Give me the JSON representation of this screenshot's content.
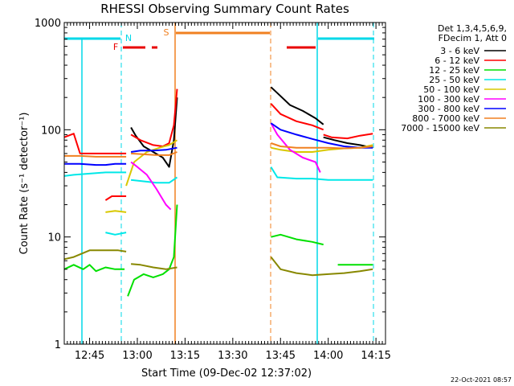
{
  "chart_data": {
    "type": "line",
    "title": "RHESSI Observing Summary Count Rates",
    "xlabel": "Start Time (09-Dec-02 12:37:02)",
    "ylabel": "Count Rate (s⁻¹ detector⁻¹)",
    "y_scale": "log",
    "ylim": [
      1,
      1000
    ],
    "xlim": [
      "12:37:02",
      "14:18:00"
    ],
    "y_ticks": [
      "1",
      "10",
      "100",
      "1000"
    ],
    "x_ticks": [
      "12:45",
      "13:00",
      "13:15",
      "13:30",
      "13:45",
      "14:00",
      "14:15"
    ],
    "legend_header": [
      "Det 1,3,4,5,6,9,",
      "FDecim 1, Att 0"
    ],
    "legend_position": "right",
    "timestamp": "22-Oct-2021 08:57",
    "markers": [
      {
        "label": "N",
        "color": "#00d8e8"
      },
      {
        "label": "F",
        "color": "#e80000"
      },
      {
        "label": "S",
        "color": "#f08020"
      }
    ],
    "series": [
      {
        "name": "3 - 6 keV",
        "color": "#000000",
        "segments": [
          {
            "x": [
              "12:58:00",
              "12:59:30",
              "13:02:00",
              "13:05:00",
              "13:08:00",
              "13:10:00",
              "13:11:30",
              "13:12:30"
            ],
            "y": [
              105,
              88,
              70,
              62,
              55,
              45,
              80,
              200
            ]
          },
          {
            "x": [
              "13:42:00",
              "13:44:00",
              "13:48:00",
              "13:52:00",
              "13:56:00",
              "13:58:30"
            ],
            "y": [
              250,
              220,
              170,
              150,
              128,
              112
            ]
          },
          {
            "x": [
              "13:58:30",
              "14:02:00",
              "14:06:00",
              "14:10:00",
              "14:14:00"
            ],
            "y": [
              85,
              80,
              75,
              72,
              68
            ]
          }
        ]
      },
      {
        "name": "6 - 12 keV",
        "color": "#ff0000",
        "segments": [
          {
            "x": [
              "12:37:02",
              "12:40:00",
              "12:42:00",
              "12:47:00",
              "12:50:00",
              "12:52:00",
              "12:56:30"
            ],
            "y": [
              85,
              92,
              60,
              60,
              60,
              60,
              60
            ]
          },
          {
            "x": [
              "12:50:00",
              "12:52:00",
              "12:56:30"
            ],
            "y": [
              22,
              24,
              24
            ]
          },
          {
            "x": [
              "12:58:00",
              "13:01:00",
              "13:05:00",
              "13:08:00",
              "13:10:00",
              "13:11:30",
              "13:12:30"
            ],
            "y": [
              90,
              80,
              72,
              70,
              75,
              110,
              240
            ]
          },
          {
            "x": [
              "13:42:00",
              "13:45:00",
              "13:50:00",
              "13:55:00",
              "13:58:30"
            ],
            "y": [
              175,
              140,
              120,
              110,
              100
            ]
          },
          {
            "x": [
              "13:58:30",
              "14:01:00",
              "14:06:00",
              "14:10:00",
              "14:14:00"
            ],
            "y": [
              90,
              85,
              83,
              88,
              92
            ]
          }
        ]
      },
      {
        "name": "12 - 25 keV",
        "color": "#00e000",
        "segments": [
          {
            "x": [
              "12:37:02",
              "12:40:00",
              "12:43:00",
              "12:45:00",
              "12:47:00",
              "12:50:00",
              "12:53:00",
              "12:56:00"
            ],
            "y": [
              5.0,
              5.5,
              5.0,
              5.5,
              4.8,
              5.2,
              5.0,
              5.0
            ]
          },
          {
            "x": [
              "12:57:00",
              "12:59:00",
              "13:02:00",
              "13:05:00",
              "13:08:00",
              "13:10:00",
              "13:11:30",
              "13:12:30"
            ],
            "y": [
              2.8,
              4.0,
              4.5,
              4.2,
              4.5,
              5.0,
              6.5,
              20
            ]
          },
          {
            "x": [
              "13:42:00",
              "13:45:00",
              "13:50:00",
              "13:55:00",
              "13:58:30"
            ],
            "y": [
              10,
              10.5,
              9.5,
              9.0,
              8.5
            ]
          },
          {
            "x": [
              "14:03:00",
              "14:06:00",
              "14:10:00",
              "14:14:00"
            ],
            "y": [
              5.5,
              5.5,
              5.5,
              5.5
            ]
          }
        ]
      },
      {
        "name": "25 - 50 keV",
        "color": "#00e8e8",
        "segments": [
          {
            "x": [
              "12:37:02",
              "12:40:00",
              "12:45:00",
              "12:50:00",
              "12:54:00",
              "12:56:30"
            ],
            "y": [
              37,
              38,
              39,
              40,
              40,
              40
            ]
          },
          {
            "x": [
              "12:50:00",
              "12:53:00",
              "12:56:30"
            ],
            "y": [
              11,
              10.5,
              11
            ]
          },
          {
            "x": [
              "12:58:00",
              "13:02:00",
              "13:06:00",
              "13:10:00",
              "13:12:30"
            ],
            "y": [
              34,
              33,
              32,
              32,
              36
            ]
          },
          {
            "x": [
              "13:42:00",
              "13:44:00",
              "13:50:00",
              "13:55:00",
              "14:00:00",
              "14:05:00",
              "14:10:00",
              "14:14:00"
            ],
            "y": [
              45,
              36,
              35,
              35,
              34,
              34,
              34,
              34
            ]
          }
        ]
      },
      {
        "name": "50 - 100 keV",
        "color": "#d8c800",
        "segments": [
          {
            "x": [
              "12:50:00",
              "12:53:00",
              "12:56:30"
            ],
            "y": [
              17,
              17.5,
              17
            ]
          },
          {
            "x": [
              "12:56:30",
              "12:59:00",
              "13:03:00",
              "13:07:00",
              "13:10:00",
              "13:12:30"
            ],
            "y": [
              30,
              50,
              62,
              68,
              72,
              80
            ]
          },
          {
            "x": [
              "13:42:00",
              "13:45:00",
              "13:50:00",
              "13:55:00",
              "14:00:00",
              "14:05:00",
              "14:10:00",
              "14:14:00"
            ],
            "y": [
              68,
              65,
              62,
              62,
              65,
              67,
              68,
              72
            ]
          }
        ]
      },
      {
        "name": "100 - 300 keV",
        "color": "#ff00ff",
        "segments": [
          {
            "x": [
              "12:58:00",
              "13:00:00",
              "13:03:00",
              "13:06:00",
              "13:09:00",
              "13:10:30"
            ],
            "y": [
              50,
              45,
              38,
              28,
              20,
              18
            ]
          },
          {
            "x": [
              "13:42:00",
              "13:44:00",
              "13:48:00",
              "13:52:00",
              "13:56:00",
              "13:57:30"
            ],
            "y": [
              115,
              90,
              65,
              55,
              50,
              40
            ]
          }
        ]
      },
      {
        "name": "300 - 800 keV",
        "color": "#0000ff",
        "segments": [
          {
            "x": [
              "12:37:02",
              "12:42:00",
              "12:47:00",
              "12:50:00",
              "12:53:00",
              "12:56:30"
            ],
            "y": [
              48,
              48,
              47,
              47,
              48,
              48
            ]
          },
          {
            "x": [
              "12:58:00",
              "13:01:00",
              "13:05:00",
              "13:09:00",
              "13:12:30"
            ],
            "y": [
              62,
              64,
              64,
              65,
              68
            ]
          },
          {
            "x": [
              "13:42:00",
              "13:45:00",
              "13:50:00",
              "13:55:00",
              "14:00:00",
              "14:05:00",
              "14:10:00",
              "14:14:00"
            ],
            "y": [
              115,
              100,
              90,
              82,
              75,
              70,
              68,
              68
            ]
          }
        ]
      },
      {
        "name": "800 - 7000 keV",
        "color": "#f08020",
        "segments": [
          {
            "x": [
              "12:37:02",
              "12:42:00",
              "12:47:00",
              "12:52:00",
              "12:56:30"
            ],
            "y": [
              57,
              57,
              56,
              56,
              56
            ]
          },
          {
            "x": [
              "12:58:00",
              "13:02:00",
              "13:06:00",
              "13:10:00",
              "13:12:30"
            ],
            "y": [
              60,
              59,
              58,
              58,
              62
            ]
          },
          {
            "x": [
              "13:42:00",
              "13:45:00",
              "13:50:00",
              "13:55:00",
              "14:00:00",
              "14:05:00",
              "14:10:00",
              "14:14:00"
            ],
            "y": [
              75,
              70,
              68,
              68,
              68,
              67,
              68,
              70
            ]
          }
        ]
      },
      {
        "name": "7000 - 15000 keV",
        "color": "#888800",
        "segments": [
          {
            "x": [
              "12:37:02",
              "12:40:00",
              "12:45:00",
              "12:50:00",
              "12:54:00",
              "12:56:30"
            ],
            "y": [
              6.2,
              6.5,
              7.5,
              7.5,
              7.5,
              7.3
            ]
          },
          {
            "x": [
              "12:58:00",
              "13:01:00",
              "13:05:00",
              "13:09:00",
              "13:12:30"
            ],
            "y": [
              5.6,
              5.5,
              5.2,
              5.0,
              5.2
            ]
          },
          {
            "x": [
              "13:42:00",
              "13:45:00",
              "13:50:00",
              "13:55:00",
              "14:00:00",
              "14:05:00",
              "14:10:00",
              "14:14:00"
            ],
            "y": [
              6.5,
              5.0,
              4.6,
              4.4,
              4.5,
              4.6,
              4.8,
              5.0
            ]
          }
        ]
      }
    ]
  }
}
